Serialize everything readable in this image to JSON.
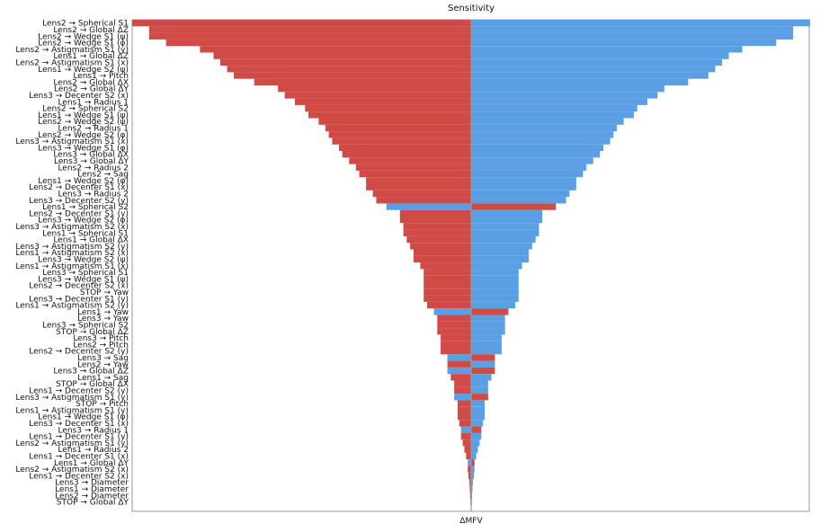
{
  "chart_data": {
    "type": "bar",
    "orientation": "horizontal",
    "layout": "tornado",
    "title": "Sensitivity",
    "xlabel": "ΔMFV",
    "colors": {
      "red": "#d04a46",
      "blue": "#5a9fe4",
      "axis": "#999999"
    },
    "xlim": [
      -1,
      1
    ],
    "categories": [
      "Lens2 → Spherical S1",
      "Lens2 → Global ΔZ",
      "Lens2 → Wedge S1 (ψ)",
      "Lens2 → Wedge S1 (φ)",
      "Lens2 → Astigmatism S1 (y)",
      "Lens1 → Global ΔZ",
      "Lens2 → Astigmatism S1 (x)",
      "Lens1 → Wedge S2 (ψ)",
      "Lens1 → Pitch",
      "Lens2 → Global ΔX",
      "Lens2 → Global ΔY",
      "Lens3 → Decenter S2 (x)",
      "Lens1 → Radius 1",
      "Lens2 → Spherical S2",
      "Lens1 → Wedge S1 (ψ)",
      "Lens2 → Wedge S2 (ψ)",
      "Lens2 → Radius 1",
      "Lens2 → Wedge S2 (φ)",
      "Lens3 → Astigmatism S1 (x)",
      "Lens3 → Wedge S1 (φ)",
      "Lens3 → Global ΔX",
      "Lens3 → Global ΔY",
      "Lens2 → Radius 2",
      "Lens2 → Sag",
      "Lens1 → Wedge S2 (φ)",
      "Lens2 → Decenter S1 (x)",
      "Lens3 → Radius 2",
      "Lens3 → Decenter S2 (y)",
      "Lens1 → Spherical S2",
      "Lens2 → Decenter S1 (y)",
      "Lens3 → Wedge S2 (φ)",
      "Lens3 → Astigmatism S2 (x)",
      "Lens1 → Spherical S1",
      "Lens1 → Global ΔX",
      "Lens3 → Astigmatism S2 (y)",
      "Lens1 → Astigmatism S2 (x)",
      "Lens3 → Wedge S2 (ψ)",
      "Lens1 → Astigmatism S1 (x)",
      "Lens3 → Spherical S1",
      "Lens3 → Wedge S1 (ψ)",
      "Lens2 → Decenter S2 (x)",
      "STOP → Yaw",
      "Lens3 → Decenter S1 (y)",
      "Lens1 → Astigmatism S2 (y)",
      "Lens1 → Yaw",
      "Lens3 → Yaw",
      "Lens3 → Spherical S2",
      "STOP → Global ΔZ",
      "Lens3 → Pitch",
      "Lens2 → Pitch",
      "Lens2 → Decenter S2 (y)",
      "Lens3 → Sag",
      "Lens2 → Yaw",
      "Lens3 → Global ΔZ",
      "Lens1 → Sag",
      "STOP → Global ΔX",
      "Lens1 → Decenter S2 (y)",
      "Lens3 → Astigmatism S1 (y)",
      "STOP → Pitch",
      "Lens1 → Astigmatism S1 (y)",
      "Lens1 → Wedge S1 (φ)",
      "Lens3 → Decenter S1 (x)",
      "Lens3 → Radius 1",
      "Lens1 → Decenter S1 (y)",
      "Lens2 → Astigmatism S1 (y)",
      "Lens1 → Radius 2",
      "Lens1 → Decenter S1 (x)",
      "Lens1 → Global ΔY",
      "Lens2 → Astigmatism S2 (x)",
      "Lens1 → Decenter S2 (x)",
      "Lens3 → Diameter",
      "Lens1 → Diameter",
      "Lens2 → Diameter",
      "STOP → Global ΔY"
    ],
    "series": [
      {
        "color": "red",
        "values": [
          -1.0,
          -0.95,
          -0.95,
          -0.9,
          -0.8,
          -0.76,
          -0.74,
          -0.72,
          -0.7,
          -0.64,
          -0.57,
          -0.55,
          -0.52,
          -0.49,
          -0.48,
          -0.45,
          -0.43,
          -0.42,
          -0.41,
          -0.39,
          -0.38,
          -0.36,
          -0.34,
          -0.33,
          -0.31,
          -0.31,
          -0.29,
          -0.28,
          0.25,
          -0.21,
          -0.21,
          -0.2,
          -0.2,
          -0.19,
          -0.18,
          -0.17,
          -0.17,
          -0.15,
          -0.14,
          -0.14,
          -0.14,
          -0.14,
          -0.14,
          -0.13,
          0.11,
          -0.1,
          -0.1,
          -0.1,
          -0.09,
          -0.09,
          -0.09,
          0.07,
          -0.07,
          0.07,
          -0.06,
          -0.05,
          -0.05,
          0.05,
          -0.04,
          -0.04,
          -0.04,
          -0.035,
          0.03,
          -0.03,
          -0.025,
          -0.02,
          -0.015,
          0.01,
          -0.01,
          -0.008,
          -0.005,
          -0.004,
          -0.003,
          -0.002
        ]
      },
      {
        "color": "blue",
        "values": [
          1.0,
          0.95,
          0.95,
          0.9,
          0.8,
          0.76,
          0.74,
          0.72,
          0.7,
          0.64,
          0.57,
          0.55,
          0.52,
          0.49,
          0.48,
          0.45,
          0.43,
          0.42,
          0.41,
          0.39,
          0.38,
          0.36,
          0.34,
          0.33,
          0.31,
          0.31,
          0.29,
          0.28,
          -0.25,
          0.21,
          0.21,
          0.2,
          0.2,
          0.19,
          0.18,
          0.17,
          0.17,
          0.15,
          0.14,
          0.14,
          0.14,
          0.14,
          0.14,
          0.13,
          -0.11,
          0.1,
          0.1,
          0.1,
          0.09,
          0.09,
          0.09,
          -0.07,
          0.07,
          -0.07,
          0.06,
          0.05,
          0.05,
          -0.05,
          0.04,
          0.04,
          0.04,
          0.035,
          -0.03,
          0.03,
          0.025,
          0.02,
          0.015,
          -0.01,
          0.01,
          0.008,
          0.005,
          0.004,
          0.003,
          0.002
        ]
      }
    ]
  }
}
